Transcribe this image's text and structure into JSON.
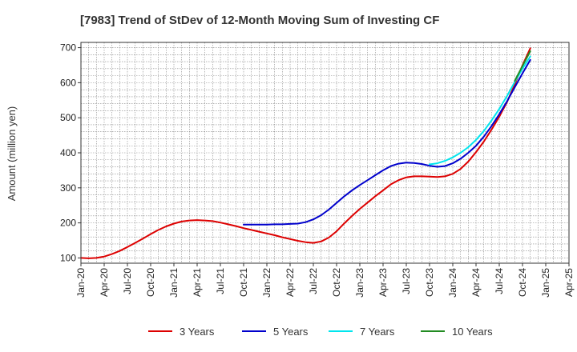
{
  "chart_data": {
    "type": "line",
    "title": "[7983]  Trend of StDev of 12-Month Moving Sum of Investing CF",
    "xlabel": "",
    "ylabel": "Amount (million yen)",
    "ylim": [
      85,
      715
    ],
    "yticks": [
      100,
      200,
      300,
      400,
      500,
      600,
      700
    ],
    "x_range": [
      "2020-01",
      "2025-04"
    ],
    "x_ticks": [
      "Jan-20",
      "Apr-20",
      "Jul-20",
      "Oct-20",
      "Jan-21",
      "Apr-21",
      "Jul-21",
      "Oct-21",
      "Jan-22",
      "Apr-22",
      "Jul-22",
      "Oct-22",
      "Jan-23",
      "Apr-23",
      "Jul-23",
      "Oct-23",
      "Jan-24",
      "Apr-24",
      "Jul-24",
      "Oct-24",
      "Jan-25",
      "Apr-25"
    ],
    "grid": true,
    "legend_position": "bottom",
    "series": [
      {
        "name": "3 Years",
        "color": "#dd0000",
        "points": [
          [
            "2020-01",
            100
          ],
          [
            "2020-02",
            99
          ],
          [
            "2020-03",
            100
          ],
          [
            "2020-04",
            104
          ],
          [
            "2020-05",
            111
          ],
          [
            "2020-06",
            120
          ],
          [
            "2020-07",
            131
          ],
          [
            "2020-08",
            143
          ],
          [
            "2020-09",
            155
          ],
          [
            "2020-10",
            168
          ],
          [
            "2020-11",
            180
          ],
          [
            "2020-12",
            190
          ],
          [
            "2021-01",
            198
          ],
          [
            "2021-02",
            204
          ],
          [
            "2021-03",
            207
          ],
          [
            "2021-04",
            208
          ],
          [
            "2021-05",
            207
          ],
          [
            "2021-06",
            205
          ],
          [
            "2021-07",
            201
          ],
          [
            "2021-08",
            196
          ],
          [
            "2021-09",
            191
          ],
          [
            "2021-10",
            185
          ],
          [
            "2021-11",
            180
          ],
          [
            "2021-12",
            175
          ],
          [
            "2022-01",
            170
          ],
          [
            "2022-02",
            165
          ],
          [
            "2022-03",
            159
          ],
          [
            "2022-04",
            154
          ],
          [
            "2022-05",
            149
          ],
          [
            "2022-06",
            145
          ],
          [
            "2022-07",
            143
          ],
          [
            "2022-08",
            147
          ],
          [
            "2022-09",
            158
          ],
          [
            "2022-10",
            176
          ],
          [
            "2022-11",
            199
          ],
          [
            "2022-12",
            220
          ],
          [
            "2023-01",
            240
          ],
          [
            "2023-02",
            258
          ],
          [
            "2023-03",
            276
          ],
          [
            "2023-04",
            293
          ],
          [
            "2023-05",
            310
          ],
          [
            "2023-06",
            322
          ],
          [
            "2023-07",
            330
          ],
          [
            "2023-08",
            333
          ],
          [
            "2023-09",
            333
          ],
          [
            "2023-10",
            332
          ],
          [
            "2023-11",
            331
          ],
          [
            "2023-12",
            333
          ],
          [
            "2024-01",
            340
          ],
          [
            "2024-02",
            354
          ],
          [
            "2024-03",
            375
          ],
          [
            "2024-04",
            402
          ],
          [
            "2024-05",
            432
          ],
          [
            "2024-06",
            466
          ],
          [
            "2024-07",
            503
          ],
          [
            "2024-08",
            545
          ],
          [
            "2024-09",
            595
          ],
          [
            "2024-10",
            650
          ],
          [
            "2024-11",
            698
          ]
        ]
      },
      {
        "name": "5 Years",
        "color": "#0000cc",
        "points": [
          [
            "2021-10",
            195
          ],
          [
            "2021-11",
            195
          ],
          [
            "2021-12",
            195
          ],
          [
            "2022-01",
            195
          ],
          [
            "2022-02",
            196
          ],
          [
            "2022-03",
            196
          ],
          [
            "2022-04",
            197
          ],
          [
            "2022-05",
            198
          ],
          [
            "2022-06",
            202
          ],
          [
            "2022-07",
            210
          ],
          [
            "2022-08",
            222
          ],
          [
            "2022-09",
            238
          ],
          [
            "2022-10",
            257
          ],
          [
            "2022-11",
            276
          ],
          [
            "2022-12",
            293
          ],
          [
            "2023-01",
            308
          ],
          [
            "2023-02",
            322
          ],
          [
            "2023-03",
            336
          ],
          [
            "2023-04",
            350
          ],
          [
            "2023-05",
            362
          ],
          [
            "2023-06",
            369
          ],
          [
            "2023-07",
            372
          ],
          [
            "2023-08",
            371
          ],
          [
            "2023-09",
            368
          ],
          [
            "2023-10",
            363
          ],
          [
            "2023-11",
            360
          ],
          [
            "2023-12",
            362
          ],
          [
            "2024-01",
            370
          ],
          [
            "2024-02",
            383
          ],
          [
            "2024-03",
            400
          ],
          [
            "2024-04",
            420
          ],
          [
            "2024-05",
            446
          ],
          [
            "2024-06",
            476
          ],
          [
            "2024-07",
            510
          ],
          [
            "2024-08",
            547
          ],
          [
            "2024-09",
            587
          ],
          [
            "2024-10",
            627
          ],
          [
            "2024-11",
            665
          ]
        ]
      },
      {
        "name": "7 Years",
        "color": "#00e5ee",
        "points": [
          [
            "2023-10",
            367
          ],
          [
            "2023-11",
            370
          ],
          [
            "2023-12",
            377
          ],
          [
            "2024-01",
            387
          ],
          [
            "2024-02",
            400
          ],
          [
            "2024-03",
            416
          ],
          [
            "2024-04",
            437
          ],
          [
            "2024-05",
            462
          ],
          [
            "2024-06",
            492
          ],
          [
            "2024-07",
            525
          ],
          [
            "2024-08",
            562
          ],
          [
            "2024-09",
            602
          ],
          [
            "2024-10",
            640
          ],
          [
            "2024-11",
            675
          ]
        ]
      },
      {
        "name": "10 Years",
        "color": "#228b22",
        "points": [
          [
            "2024-09",
            605
          ],
          [
            "2024-10",
            648
          ],
          [
            "2024-11",
            690
          ]
        ]
      }
    ]
  }
}
